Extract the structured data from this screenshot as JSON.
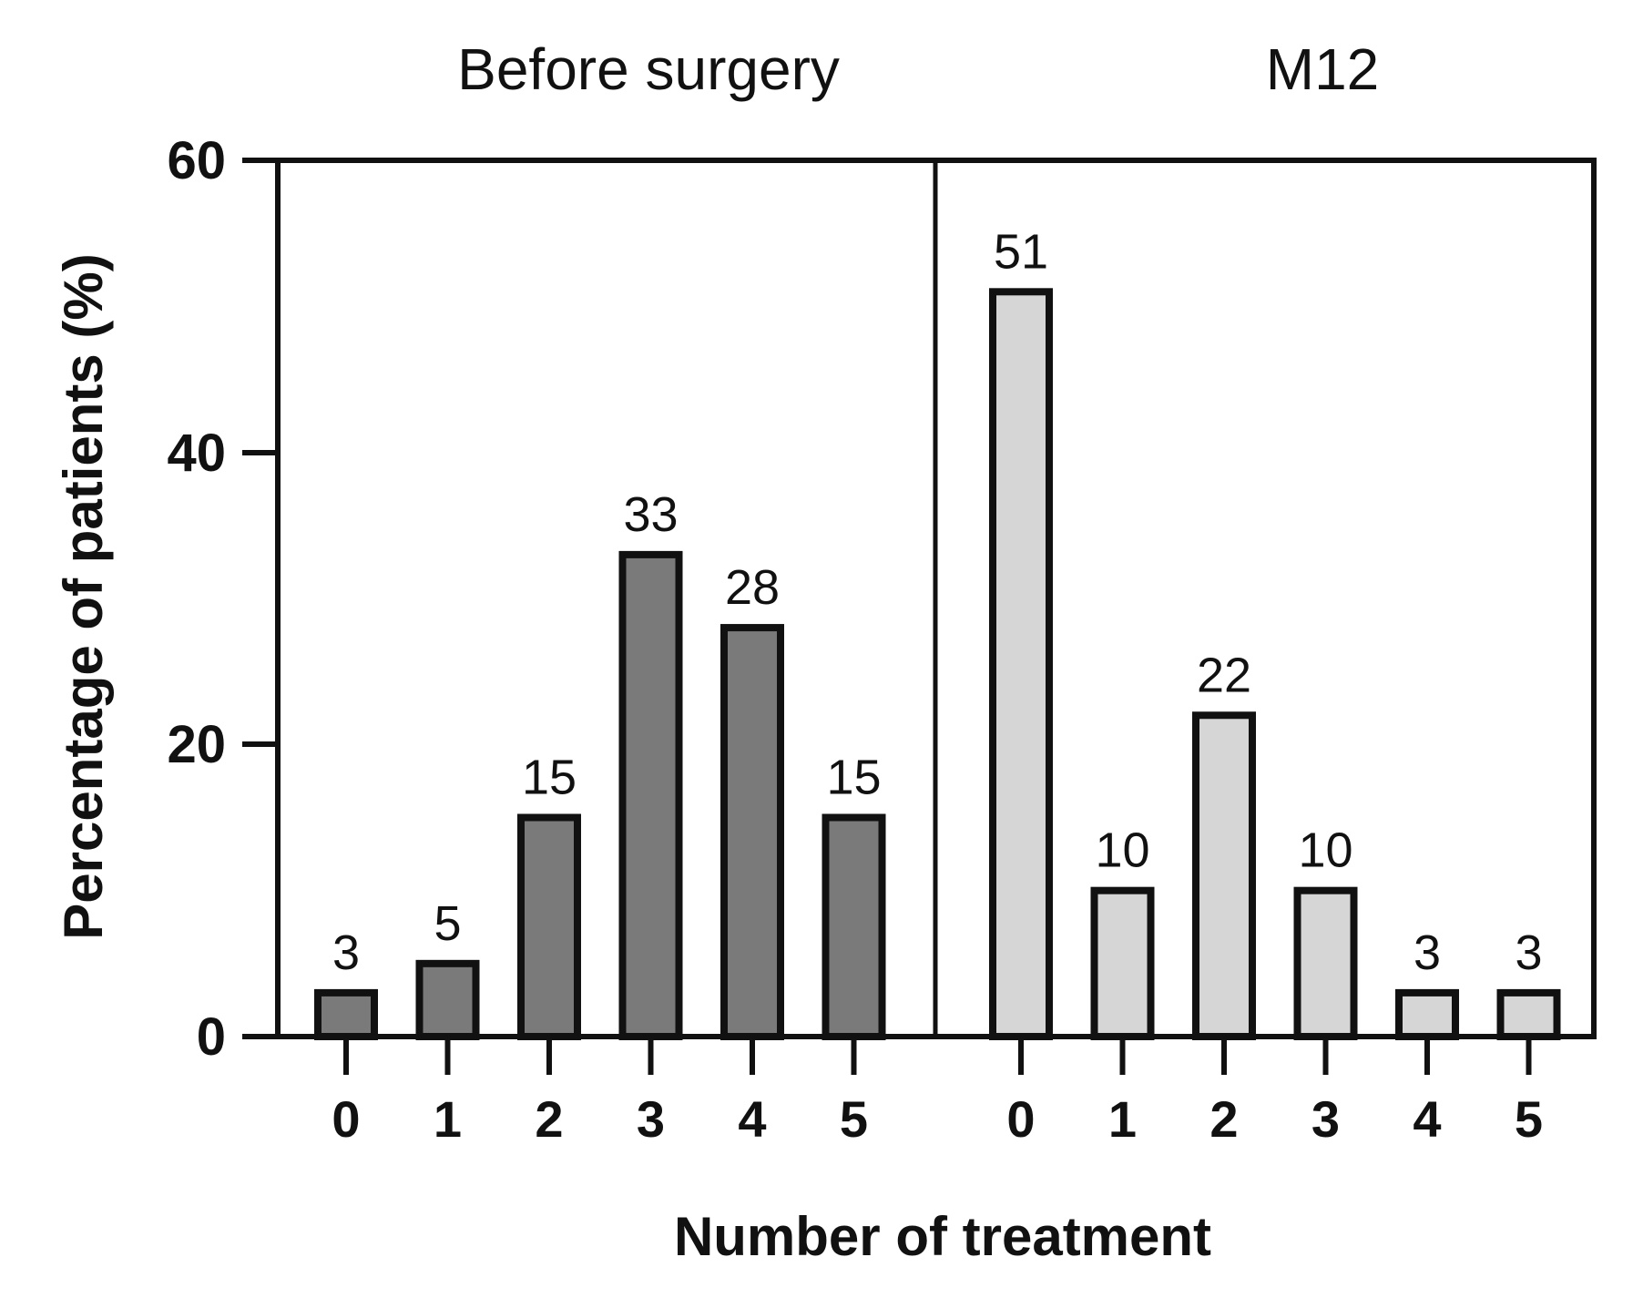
{
  "chart_data": {
    "type": "bar",
    "ylabel": "Percentage of patients (%)",
    "xlabel": "Number of treatment",
    "ylim": [
      0,
      60
    ],
    "yticks": [
      "0",
      "20",
      "40",
      "60"
    ],
    "panels": [
      {
        "title": "Before surgery",
        "categories": [
          "0",
          "1",
          "2",
          "3",
          "4",
          "5"
        ],
        "values": [
          3,
          5,
          15,
          33,
          28,
          15
        ],
        "labels": [
          "3",
          "5",
          "15",
          "33",
          "28",
          "15"
        ],
        "color": "#7a7a7a"
      },
      {
        "title": "M12",
        "categories": [
          "0",
          "1",
          "2",
          "3",
          "4",
          "5"
        ],
        "values": [
          51,
          10,
          22,
          10,
          3,
          3
        ],
        "labels": [
          "51",
          "10",
          "22",
          "10",
          "3",
          "3"
        ],
        "color": "#d6d6d6"
      }
    ]
  }
}
